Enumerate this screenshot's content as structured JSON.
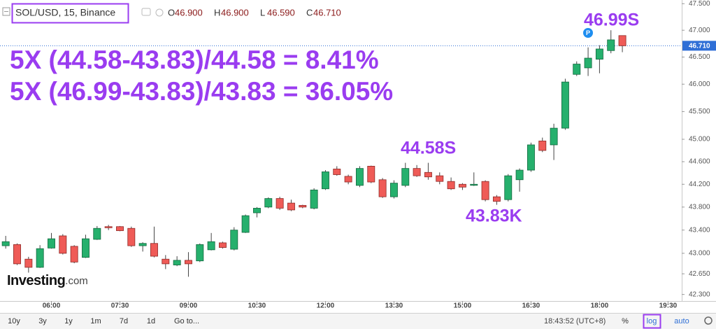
{
  "chart_data": {
    "type": "candlestick",
    "title": "SOL/USD, 15, Binance",
    "header": [
      [
        "O",
        "46.900"
      ],
      [
        "H",
        "46.900"
      ],
      [
        "L",
        "46.590"
      ],
      [
        "C",
        "46.710"
      ]
    ],
    "up_color": "#26b06d",
    "down_color": "#ef5b57",
    "annotation_color": "#9a3cf0",
    "log_scale": true,
    "grid": false,
    "formulas": [
      "5X (44.58-43.83)/44.58 = 8.41%",
      "5X (46.99-43.83)/43.83 = 36.05%"
    ],
    "annotations": [
      "46.99S",
      "44.58S",
      "43.83K"
    ],
    "marker": "P",
    "last_price": {
      "value": 46.71,
      "label": "46.710"
    },
    "xlim": [
      -0.5,
      59.2
    ],
    "xticks": [
      {
        "value": 4,
        "label": "06:00"
      },
      {
        "value": 10,
        "label": "07:30"
      },
      {
        "value": 16,
        "label": "09:00"
      },
      {
        "value": 22,
        "label": "10:30"
      },
      {
        "value": 28,
        "label": "12:00"
      },
      {
        "value": 34,
        "label": "13:30"
      },
      {
        "value": 40,
        "label": "15:00"
      },
      {
        "value": 46,
        "label": "16:30"
      },
      {
        "value": 52,
        "label": "18:00"
      },
      {
        "value": 58,
        "label": "19:30"
      }
    ],
    "ylim": [
      42.19,
      47.57
    ],
    "yticks": [
      {
        "value": 47.5,
        "label": "47.500"
      },
      {
        "value": 47.0,
        "label": "47.000"
      },
      {
        "value": 46.5,
        "label": "46.500"
      },
      {
        "value": 46.0,
        "label": "46.000"
      },
      {
        "value": 45.5,
        "label": "45.500"
      },
      {
        "value": 45.0,
        "label": "45.000"
      },
      {
        "value": 44.6,
        "label": "44.600"
      },
      {
        "value": 44.2,
        "label": "44.200"
      },
      {
        "value": 43.8,
        "label": "43.800"
      },
      {
        "value": 43.4,
        "label": "43.400"
      },
      {
        "value": 43.0,
        "label": "43.000"
      },
      {
        "value": 42.65,
        "label": "42.650"
      },
      {
        "value": 42.3,
        "label": "42.300"
      }
    ],
    "open": [
      43.13,
      43.15,
      42.9,
      42.76,
      43.09,
      43.3,
      43.12,
      42.93,
      43.24,
      43.46,
      43.46,
      43.43,
      43.13,
      43.17,
      42.9,
      42.8,
      42.88,
      42.87,
      43.06,
      43.18,
      43.07,
      43.36,
      43.7,
      43.8,
      43.95,
      43.87,
      43.83,
      43.78,
      44.12,
      44.47,
      44.34,
      44.18,
      44.52,
      44.28,
      43.98,
      44.18,
      44.48,
      44.41,
      44.35,
      44.25,
      44.2,
      44.19,
      44.25,
      43.98,
      43.93,
      44.28,
      44.45,
      44.97,
      44.9,
      45.2,
      46.18,
      46.3,
      46.46,
      46.62,
      46.9
    ],
    "high": [
      43.3,
      43.17,
      42.94,
      43.14,
      43.35,
      43.33,
      43.14,
      43.32,
      43.47,
      43.49,
      43.47,
      43.46,
      43.19,
      43.46,
      42.97,
      42.95,
      43.02,
      43.17,
      43.35,
      43.2,
      43.45,
      43.67,
      43.8,
      43.97,
      43.98,
      43.93,
      43.84,
      44.13,
      44.45,
      44.52,
      44.37,
      44.52,
      44.53,
      44.31,
      44.27,
      44.58,
      44.54,
      44.58,
      44.41,
      44.32,
      44.22,
      44.41,
      44.27,
      44.01,
      44.38,
      44.48,
      44.94,
      45.03,
      45.28,
      46.1,
      46.42,
      46.68,
      46.72,
      47.0,
      46.9
    ],
    "low": [
      43.08,
      42.8,
      42.67,
      42.75,
      43.08,
      42.98,
      42.83,
      42.92,
      43.23,
      43.4,
      43.38,
      43.11,
      43.03,
      42.93,
      42.73,
      42.78,
      42.6,
      42.85,
      43.05,
      43.08,
      43.05,
      43.35,
      43.62,
      43.78,
      43.75,
      43.73,
      43.78,
      43.76,
      44.1,
      44.35,
      44.2,
      44.15,
      44.22,
      43.96,
      43.95,
      44.15,
      44.33,
      44.28,
      44.2,
      44.1,
      44.1,
      44.17,
      43.9,
      43.84,
      43.9,
      44.07,
      44.42,
      44.77,
      44.63,
      45.17,
      46.15,
      46.15,
      46.2,
      46.57,
      46.59
    ],
    "close": [
      43.2,
      42.82,
      42.76,
      43.08,
      43.25,
      43.0,
      42.85,
      43.25,
      43.43,
      43.44,
      43.39,
      43.13,
      43.17,
      42.95,
      42.82,
      42.88,
      42.82,
      43.15,
      43.2,
      43.1,
      43.4,
      43.65,
      43.78,
      43.95,
      43.78,
      43.75,
      43.8,
      44.1,
      44.42,
      44.37,
      44.24,
      44.48,
      44.24,
      43.98,
      44.22,
      44.48,
      44.35,
      44.33,
      44.25,
      44.12,
      44.15,
      44.2,
      43.93,
      43.9,
      44.35,
      44.45,
      44.9,
      44.8,
      45.2,
      46.04,
      46.37,
      46.48,
      46.65,
      46.82,
      46.71
    ],
    "watermark": [
      "Investing",
      ".com"
    ]
  },
  "toolbar": {
    "ranges": [
      "10y",
      "3y",
      "1y",
      "1m",
      "7d",
      "1d"
    ],
    "goto": "Go to...",
    "clock": "18:43:52 (UTC+8)",
    "options": [
      "%",
      "log",
      "auto"
    ]
  }
}
